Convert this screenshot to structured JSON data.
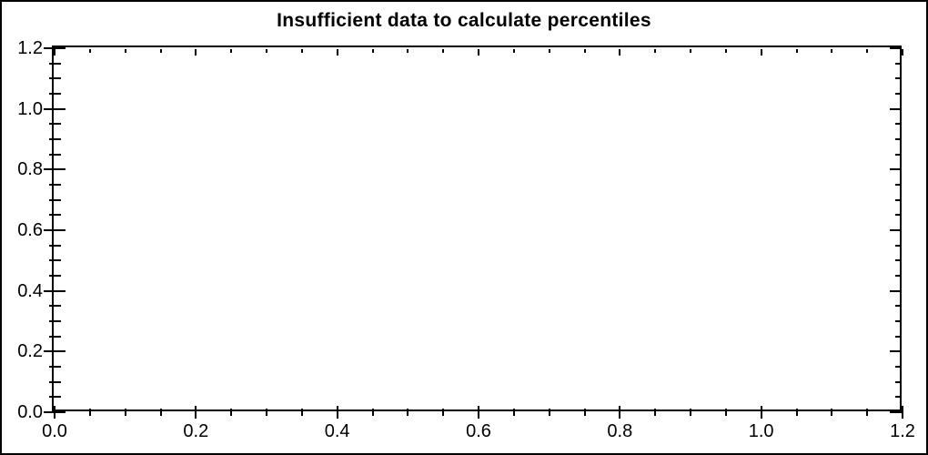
{
  "title": "Insufficient data to calculate percentiles",
  "colors": {
    "background": "#ffffff",
    "axis": "#000000",
    "text": "#000000",
    "border": "#000000"
  },
  "chart_data": {
    "type": "scatter",
    "title": "Insufficient data to calculate percentiles",
    "series": [],
    "annotations": [],
    "message": "Insufficient data to calculate percentiles",
    "xlabel": "",
    "ylabel": "",
    "xlim": [
      0.0,
      1.2
    ],
    "ylim": [
      0.0,
      1.2
    ],
    "x_major_step": 0.2,
    "x_minor_step": 0.05,
    "y_major_step": 0.2,
    "y_minor_step": 0.05,
    "x_tick_labels": [
      "0.0",
      "0.2",
      "0.4",
      "0.6",
      "0.8",
      "1.0",
      "1.2"
    ],
    "y_tick_labels": [
      "0.0",
      "0.2",
      "0.4",
      "0.6",
      "0.8",
      "1.0",
      "1.2"
    ],
    "grid": false,
    "legend": null
  }
}
